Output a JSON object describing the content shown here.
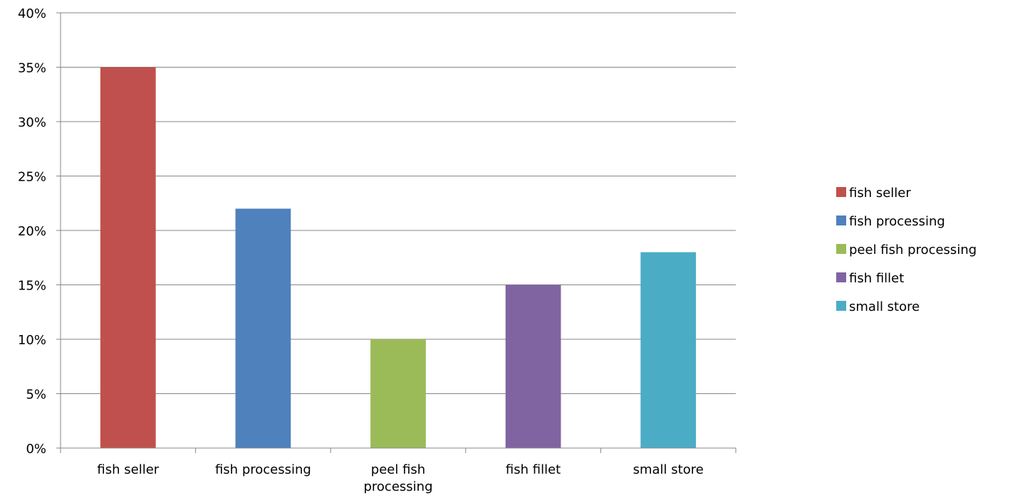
{
  "chart_data": {
    "type": "bar",
    "categories": [
      "fish seller",
      "fish processing",
      "peel fish processing",
      "fish fillet",
      "small store"
    ],
    "category_labels": [
      [
        "fish seller"
      ],
      [
        "fish processing"
      ],
      [
        "peel fish",
        "processing"
      ],
      [
        "fish fillet"
      ],
      [
        "small store"
      ]
    ],
    "values": [
      35,
      22,
      10,
      15,
      18
    ],
    "colors": [
      "#C0504D",
      "#4F81BD",
      "#9BBB59",
      "#8064A2",
      "#4BACC6"
    ],
    "ylim": [
      0,
      40
    ],
    "ytick_step": 5,
    "ytick_format": "percent",
    "grid": true,
    "legend_position": "right",
    "legend": [
      "fish seller",
      "fish processing",
      "peel fish processing",
      "fish fillet",
      "small store"
    ],
    "title": "",
    "xlabel": "",
    "ylabel": ""
  }
}
